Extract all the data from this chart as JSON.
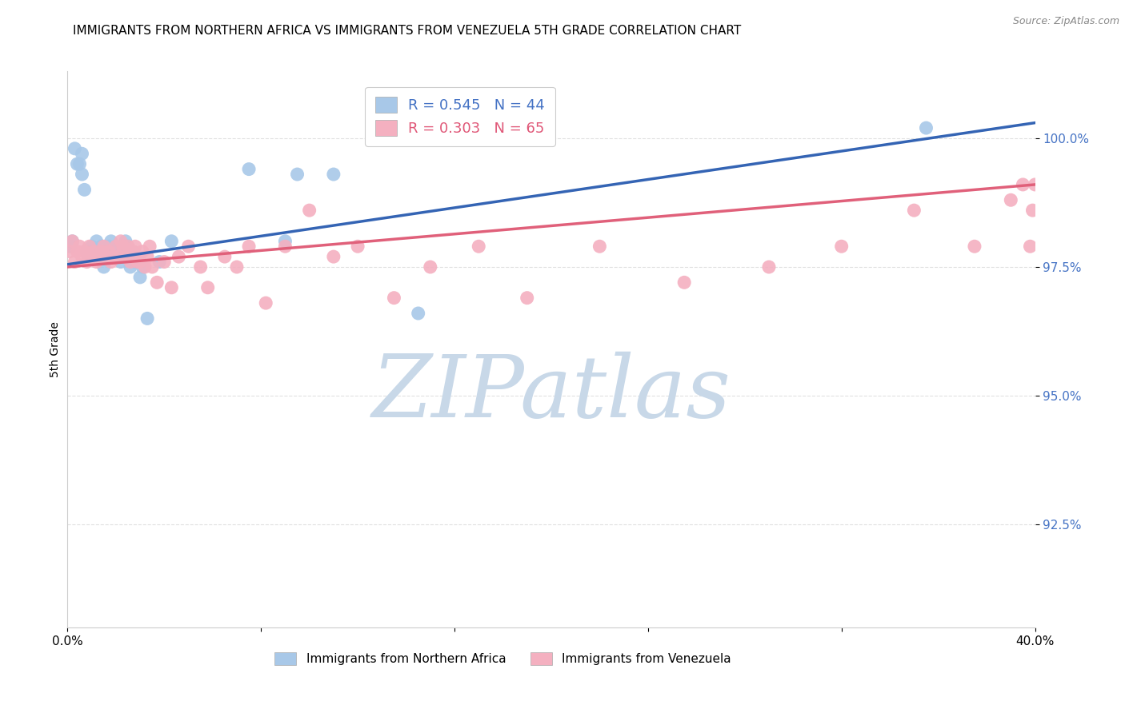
{
  "title": "IMMIGRANTS FROM NORTHERN AFRICA VS IMMIGRANTS FROM VENEZUELA 5TH GRADE CORRELATION CHART",
  "source_text": "Source: ZipAtlas.com",
  "ylabel": "5th Grade",
  "xmin": 0.0,
  "xmax": 0.4,
  "ymin": 0.905,
  "ymax": 1.013,
  "yticks": [
    0.925,
    0.95,
    0.975,
    1.0
  ],
  "ytick_labels": [
    "92.5%",
    "95.0%",
    "97.5%",
    "100.0%"
  ],
  "xticks": [
    0.0,
    0.08,
    0.16,
    0.24,
    0.32,
    0.4
  ],
  "xtick_labels": [
    "0.0%",
    "",
    "",
    "",
    "",
    "40.0%"
  ],
  "blue_R": 0.545,
  "blue_N": 44,
  "pink_R": 0.303,
  "pink_N": 65,
  "blue_color": "#a8c8e8",
  "pink_color": "#f4b0c0",
  "blue_line_color": "#3464b4",
  "pink_line_color": "#e0607a",
  "watermark_ZIP_color": "#c8d8e8",
  "watermark_atlas_color": "#c0ccd8",
  "blue_scatter_x": [
    0.001,
    0.002,
    0.003,
    0.004,
    0.005,
    0.006,
    0.006,
    0.007,
    0.008,
    0.009,
    0.01,
    0.011,
    0.012,
    0.013,
    0.014,
    0.015,
    0.015,
    0.016,
    0.017,
    0.017,
    0.018,
    0.019,
    0.02,
    0.021,
    0.021,
    0.022,
    0.023,
    0.024,
    0.024,
    0.025,
    0.026,
    0.027,
    0.028,
    0.03,
    0.031,
    0.033,
    0.038,
    0.043,
    0.075,
    0.09,
    0.095,
    0.11,
    0.145,
    0.355
  ],
  "blue_scatter_y": [
    0.979,
    0.98,
    0.998,
    0.995,
    0.995,
    0.997,
    0.993,
    0.99,
    0.978,
    0.977,
    0.979,
    0.978,
    0.98,
    0.978,
    0.979,
    0.978,
    0.975,
    0.977,
    0.978,
    0.979,
    0.98,
    0.978,
    0.979,
    0.977,
    0.978,
    0.976,
    0.977,
    0.98,
    0.979,
    0.979,
    0.975,
    0.978,
    0.976,
    0.973,
    0.975,
    0.965,
    0.976,
    0.98,
    0.994,
    0.98,
    0.993,
    0.993,
    0.966,
    1.002
  ],
  "pink_scatter_x": [
    0.001,
    0.002,
    0.003,
    0.004,
    0.005,
    0.006,
    0.007,
    0.008,
    0.009,
    0.01,
    0.011,
    0.012,
    0.013,
    0.014,
    0.015,
    0.016,
    0.017,
    0.018,
    0.019,
    0.02,
    0.021,
    0.022,
    0.023,
    0.024,
    0.025,
    0.026,
    0.027,
    0.028,
    0.029,
    0.03,
    0.031,
    0.032,
    0.033,
    0.034,
    0.035,
    0.037,
    0.04,
    0.043,
    0.046,
    0.05,
    0.055,
    0.058,
    0.065,
    0.07,
    0.075,
    0.082,
    0.09,
    0.1,
    0.11,
    0.12,
    0.135,
    0.15,
    0.17,
    0.19,
    0.22,
    0.255,
    0.29,
    0.32,
    0.35,
    0.375,
    0.39,
    0.395,
    0.398,
    0.399,
    0.4
  ],
  "pink_scatter_y": [
    0.978,
    0.98,
    0.976,
    0.978,
    0.979,
    0.977,
    0.978,
    0.976,
    0.979,
    0.977,
    0.978,
    0.976,
    0.977,
    0.978,
    0.979,
    0.977,
    0.978,
    0.976,
    0.977,
    0.979,
    0.977,
    0.98,
    0.979,
    0.977,
    0.979,
    0.976,
    0.978,
    0.979,
    0.976,
    0.976,
    0.978,
    0.975,
    0.977,
    0.979,
    0.975,
    0.972,
    0.976,
    0.971,
    0.977,
    0.979,
    0.975,
    0.971,
    0.977,
    0.975,
    0.979,
    0.968,
    0.979,
    0.986,
    0.977,
    0.979,
    0.969,
    0.975,
    0.979,
    0.969,
    0.979,
    0.972,
    0.975,
    0.979,
    0.986,
    0.979,
    0.988,
    0.991,
    0.979,
    0.986,
    0.991
  ],
  "blue_line_x": [
    0.0,
    0.4
  ],
  "blue_line_y": [
    0.9755,
    1.003
  ],
  "pink_line_x": [
    0.0,
    0.4
  ],
  "pink_line_y": [
    0.975,
    0.991
  ],
  "background_color": "#ffffff",
  "grid_color": "#dddddd",
  "title_fontsize": 11,
  "tick_label_color_right": "#4472c4",
  "legend_blue_text_color": "#4472c4",
  "legend_pink_text_color": "#e05878"
}
